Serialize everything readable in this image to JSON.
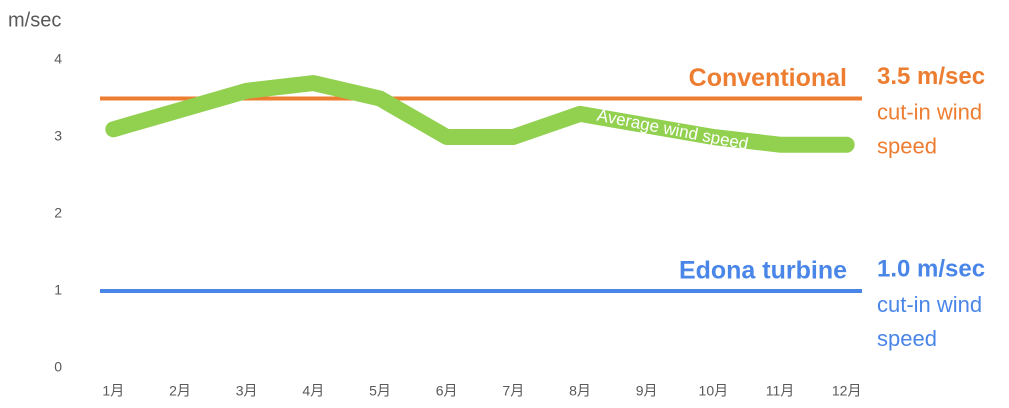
{
  "chart_data": {
    "type": "line",
    "y_label": "m/sec",
    "categories": [
      "1月",
      "2月",
      "3月",
      "4月",
      "5月",
      "6月",
      "7月",
      "8月",
      "9月",
      "10月",
      "11月",
      "12月"
    ],
    "series": [
      {
        "name": "Average wind speed",
        "color": "#92d050",
        "values": [
          3.1,
          3.35,
          3.6,
          3.7,
          3.5,
          3.0,
          3.0,
          3.3,
          3.15,
          3.0,
          2.9,
          2.9
        ]
      }
    ],
    "ylim": [
      0,
      4
    ],
    "yticks": [
      0,
      1,
      2,
      3,
      4
    ],
    "grid": false,
    "reference_lines": [
      {
        "label": "Conventional",
        "value": 3.5,
        "value_label": "3.5 m/sec",
        "note_lines": [
          "cut-in wind",
          "speed"
        ],
        "color": "#ed7d31"
      },
      {
        "label": "Edona turbine",
        "value": 1.0,
        "value_label": "1.0 m/sec",
        "note_lines": [
          "cut-in wind",
          "speed"
        ],
        "color": "#4a86e8"
      }
    ]
  }
}
